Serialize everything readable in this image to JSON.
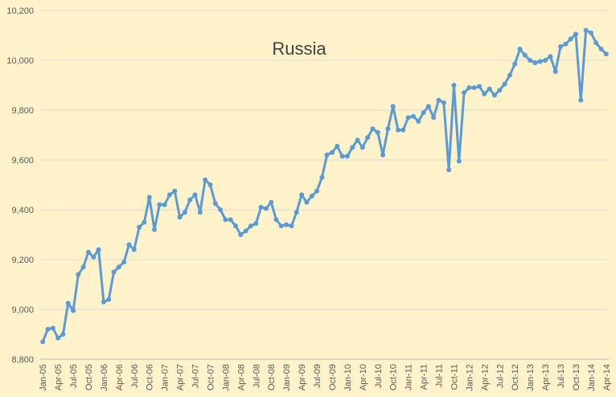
{
  "chart_data": {
    "type": "line",
    "title": "Russia",
    "color": "#5b9bd5",
    "categories": [
      "Jan-05",
      null,
      null,
      "Apr-05",
      null,
      null,
      "Jul-05",
      null,
      null,
      "Oct-05",
      null,
      null,
      "Jan-06",
      null,
      null,
      "Apr-06",
      null,
      null,
      "Jul-06",
      null,
      null,
      "Oct-06",
      null,
      null,
      "Jan-07",
      null,
      null,
      "Apr-07",
      null,
      null,
      "Jul-07",
      null,
      null,
      "Oct-07",
      null,
      null,
      "Jan-08",
      null,
      null,
      "Apr-08",
      null,
      null,
      "Jul-08",
      null,
      null,
      "Oct-08",
      null,
      null,
      "Jan-09",
      null,
      null,
      "Apr-09",
      null,
      null,
      "Jul-09",
      null,
      null,
      "Oct-09",
      null,
      null,
      "Jan-10",
      null,
      null,
      "Apr-10",
      null,
      null,
      "Jul-10",
      null,
      null,
      "Oct-10",
      null,
      null,
      "Jan-11",
      null,
      null,
      "Apr-11",
      null,
      null,
      "Jul-11",
      null,
      null,
      "Oct-11",
      null,
      null,
      "Jan-12",
      null,
      null,
      "Apr-12",
      null,
      null,
      "Jul-12",
      null,
      null,
      "Oct-12",
      null,
      null,
      "Jan-13",
      null,
      null,
      "Apr-13",
      null,
      null,
      "Jul-13",
      null,
      null,
      "Oct-13",
      null,
      null,
      "Jan-14",
      null,
      null,
      "Apr-14"
    ],
    "values": [
      8870,
      8920,
      8925,
      8885,
      8900,
      9025,
      8995,
      9140,
      9170,
      9230,
      9210,
      9240,
      9030,
      9040,
      9150,
      9170,
      9190,
      9260,
      9240,
      9330,
      9350,
      9450,
      9320,
      9420,
      9420,
      9460,
      9475,
      9370,
      9390,
      9440,
      9460,
      9390,
      9520,
      9500,
      9425,
      9400,
      9360,
      9360,
      9335,
      9300,
      9315,
      9335,
      9345,
      9410,
      9405,
      9430,
      9360,
      9335,
      9340,
      9335,
      9390,
      9460,
      9430,
      9455,
      9475,
      9530,
      9620,
      9630,
      9655,
      9615,
      9615,
      9650,
      9680,
      9650,
      9690,
      9725,
      9710,
      9620,
      9725,
      9815,
      9720,
      9720,
      9770,
      9775,
      9755,
      9790,
      9815,
      9770,
      9840,
      9830,
      9560,
      9900,
      9595,
      9870,
      9890,
      9890,
      9895,
      9865,
      9885,
      9860,
      9880,
      9905,
      9940,
      9985,
      10045,
      10020,
      10000,
      9990,
      9995,
      10000,
      10015,
      9955,
      10055,
      10065,
      10085,
      10105,
      9840,
      10120,
      10110,
      10070,
      10045,
      10025
    ],
    "ylim": [
      8800,
      10200
    ],
    "yticks": [
      {
        "value": 8800,
        "label": "8,800"
      },
      {
        "value": 9000,
        "label": "9,000"
      },
      {
        "value": 9200,
        "label": "9,200"
      },
      {
        "value": 9400,
        "label": "9,400"
      },
      {
        "value": 9600,
        "label": "9,600"
      },
      {
        "value": 9800,
        "label": "9,800"
      },
      {
        "value": 10000,
        "label": "10,000"
      },
      {
        "value": 10200,
        "label": "10,200"
      }
    ],
    "grid": true
  }
}
